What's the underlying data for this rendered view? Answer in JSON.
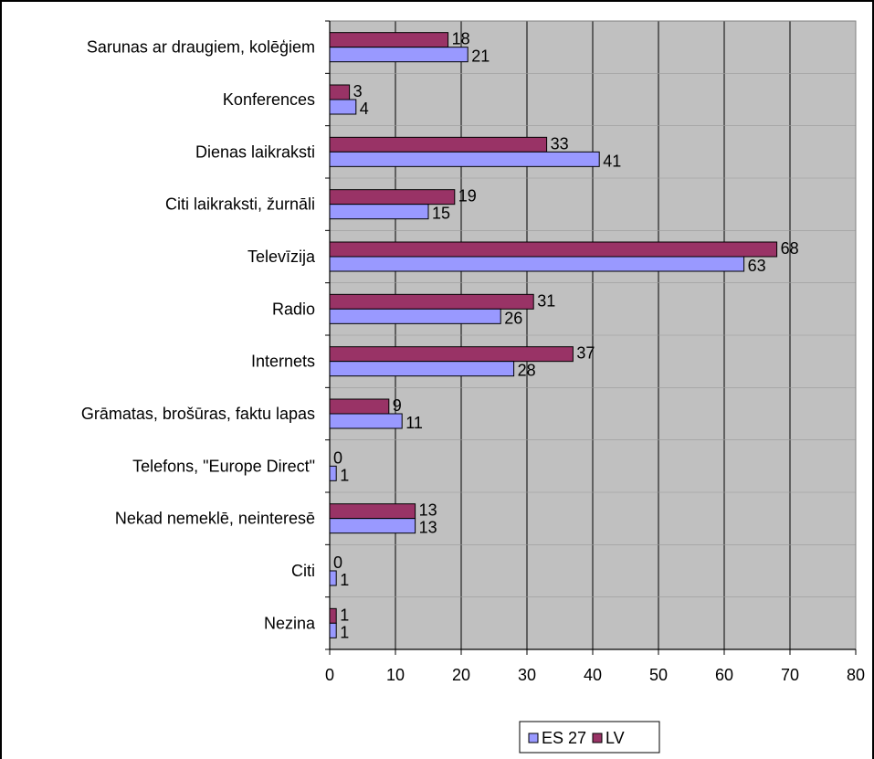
{
  "chart_data": {
    "type": "bar",
    "orientation": "horizontal",
    "categories": [
      "Sarunas ar draugiem, kolēģiem",
      "Konferences",
      "Dienas laikraksti",
      "Citi laikraksti, žurnāli",
      "Televīzija",
      "Radio",
      "Internets",
      "Grāmatas, brošūras, faktu lapas",
      "Telefons, \"Europe Direct\"",
      "Nekad nemeklē, neinteresē",
      "Citi",
      "Nezina"
    ],
    "series": [
      {
        "name": "LV",
        "color": "#993366",
        "values": [
          18,
          3,
          33,
          19,
          68,
          31,
          37,
          9,
          0,
          13,
          0,
          1
        ]
      },
      {
        "name": "ES 27",
        "color": "#9999ff",
        "values": [
          21,
          4,
          41,
          15,
          63,
          26,
          28,
          11,
          1,
          13,
          1,
          1
        ]
      }
    ],
    "xlim": [
      0,
      80
    ],
    "xticks": [
      "0",
      "10",
      "20",
      "30",
      "40",
      "50",
      "60",
      "70",
      "80"
    ],
    "grid": true,
    "plot_background": "#c0c0c0",
    "legend": {
      "placement": "bottom",
      "items": [
        "ES 27",
        "LV"
      ]
    },
    "title": "",
    "xlabel": "",
    "ylabel": ""
  }
}
